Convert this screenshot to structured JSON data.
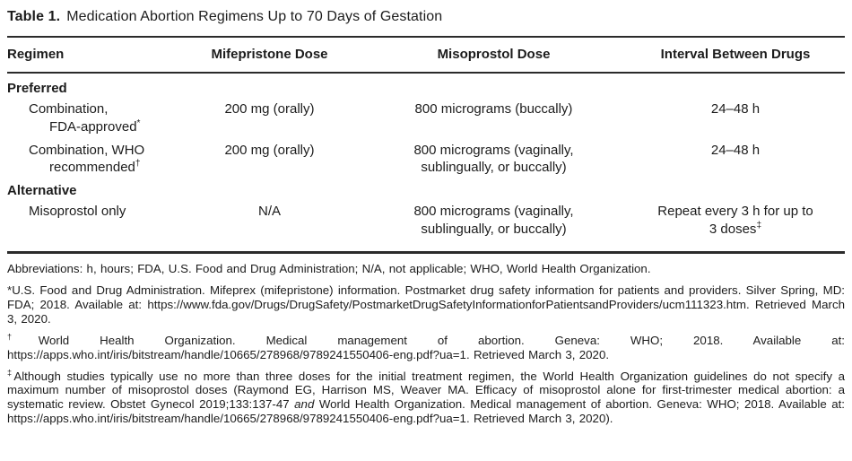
{
  "title": {
    "label": "Table 1.",
    "text": "Medication Abortion Regimens Up to 70 Days of Gestation"
  },
  "table": {
    "columns": [
      "Regimen",
      "Mifepristone Dose",
      "Misoprostol Dose",
      "Interval Between Drugs"
    ],
    "rows": [
      {
        "type": "section",
        "label": "Preferred"
      },
      {
        "type": "data",
        "regimen1": "Combination,",
        "regimen2": "FDA-approved",
        "regimen_marker": "*",
        "mifepristone": "200 mg (orally)",
        "misoprostol1": "800 micrograms (buccally)",
        "misoprostol2": "",
        "interval1": "24–48 h",
        "interval2": "",
        "interval_marker": ""
      },
      {
        "type": "data",
        "regimen1": "Combination, WHO",
        "regimen2": "recommended",
        "regimen_marker": "†",
        "mifepristone": "200 mg (orally)",
        "misoprostol1": "800 micrograms (vaginally,",
        "misoprostol2": "sublingually, or buccally)",
        "interval1": "24–48 h",
        "interval2": "",
        "interval_marker": ""
      },
      {
        "type": "section",
        "label": "Alternative"
      },
      {
        "type": "data",
        "regimen1": "Misoprostol only",
        "regimen2": "",
        "regimen_marker": "",
        "mifepristone": "N/A",
        "misoprostol1": "800 micrograms (vaginally,",
        "misoprostol2": "sublingually, or buccally)",
        "interval1": "Repeat every 3 h for up to",
        "interval2": "3 doses",
        "interval_marker": "‡"
      }
    ]
  },
  "footnotes": {
    "abbreviations": "Abbreviations: h, hours; FDA, U.S. Food and Drug Administration; N/A, not applicable; WHO, World Health Organization.",
    "star": {
      "marker": "*",
      "text": "U.S. Food and Drug Administration. Mifeprex (mifepristone) information. Postmarket drug safety information for patients and providers. Silver Spring, MD: FDA; 2018. Available at: https://www.fda.gov/Drugs/DrugSafety/PostmarketDrugSafetyInformationforPatientsandProviders/ucm111323.htm. Retrieved March 3, 2020."
    },
    "dagger": {
      "marker": "†",
      "text": "World Health Organization. Medical management of abortion. Geneva: WHO; 2018. Available at: https://apps.who.int/iris/bitstream/handle/10665/278968/9789241550406-eng.pdf?ua=1. Retrieved March 3, 2020."
    },
    "ddagger": {
      "marker": "‡",
      "text1": "Although studies typically use no more than three doses for the initial treatment regimen, the World Health Organization guidelines do not specify a maximum number of misoprostol doses (Raymond EG, Harrison MS, Weaver MA. Efficacy of misoprostol alone for first-trimester medical abortion: a systematic review. Obstet Gynecol 2019;133:137-47 ",
      "and_word": "and",
      "text2": " World Health Organization. Medical management of abortion. Geneva: WHO; 2018. Available at: https://apps.who.int/iris/bitstream/handle/10665/278968/9789241550406-eng.pdf?ua=1. Retrieved March 3, 2020)."
    }
  }
}
